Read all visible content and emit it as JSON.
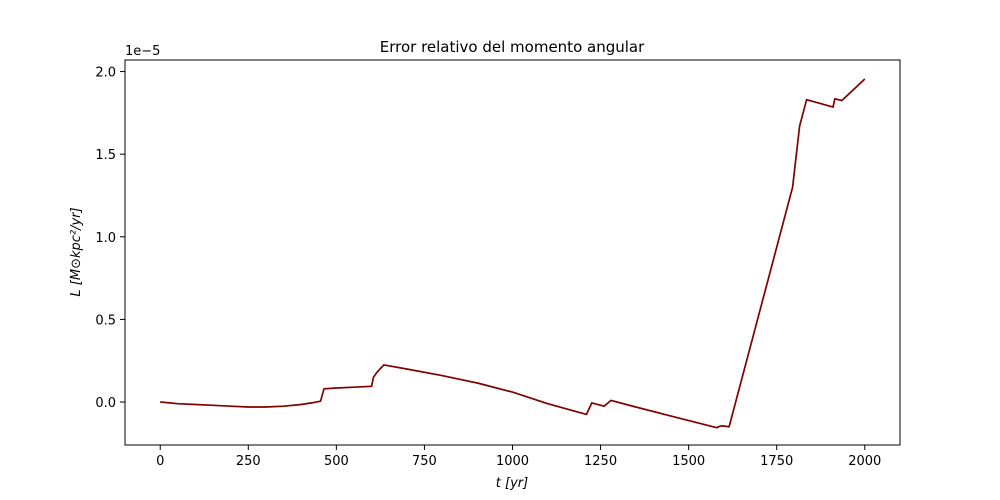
{
  "chart_data": {
    "type": "line",
    "title": "Error relativo del momento angular",
    "xlabel": "t [yr]",
    "ylabel": "L [M⊙kpc²/yr]",
    "y_offset_label": "1e−5",
    "y_scale": 1e-05,
    "xlim": [
      -100,
      2100
    ],
    "ylim": [
      -0.26,
      2.07
    ],
    "x_ticks": [
      0,
      250,
      500,
      750,
      1000,
      1250,
      1500,
      1750,
      2000
    ],
    "x_tick_labels": [
      "0",
      "250",
      "500",
      "750",
      "1000",
      "1250",
      "1500",
      "1750",
      "2000"
    ],
    "y_ticks": [
      0.0,
      0.5,
      1.0,
      1.5,
      2.0
    ],
    "y_tick_labels": [
      "0.0",
      "0.5",
      "1.0",
      "1.5",
      "2.0"
    ],
    "grid": false,
    "series": [
      {
        "color": "#800000",
        "x": [
          0,
          50,
          100,
          150,
          200,
          250,
          300,
          350,
          400,
          430,
          455,
          465,
          500,
          550,
          600,
          605,
          615,
          635,
          700,
          800,
          900,
          1000,
          1100,
          1210,
          1225,
          1260,
          1280,
          1350,
          1450,
          1580,
          1590,
          1600,
          1615,
          1795,
          1815,
          1835,
          1910,
          1915,
          1935,
          2000
        ],
        "y": [
          0.0,
          -0.01,
          -0.015,
          -0.02,
          -0.025,
          -0.03,
          -0.03,
          -0.025,
          -0.015,
          -0.005,
          0.005,
          0.08,
          0.085,
          0.09,
          0.095,
          0.15,
          0.18,
          0.225,
          0.2,
          0.16,
          0.115,
          0.06,
          -0.01,
          -0.075,
          -0.005,
          -0.025,
          0.01,
          -0.03,
          -0.085,
          -0.155,
          -0.145,
          -0.145,
          -0.15,
          1.3,
          1.67,
          1.83,
          1.785,
          1.835,
          1.825,
          1.955
        ]
      }
    ]
  }
}
